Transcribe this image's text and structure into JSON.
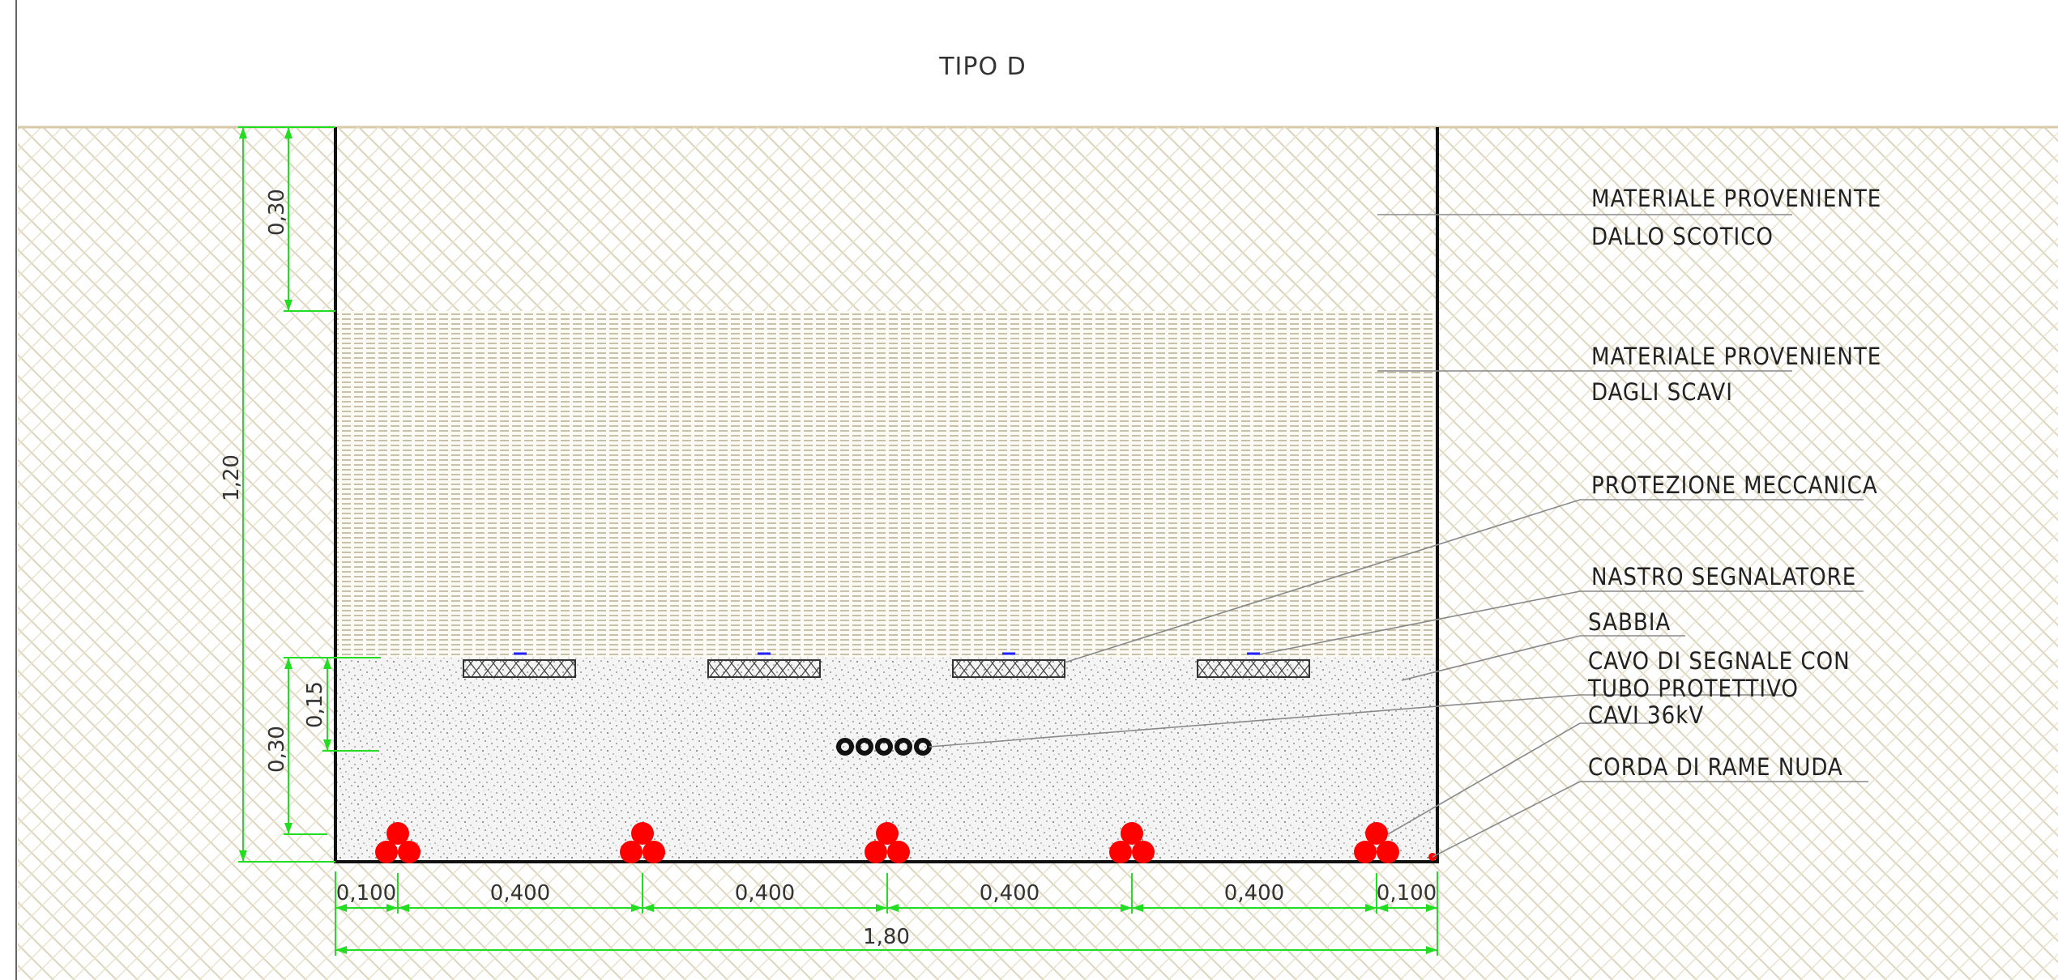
{
  "title": "TIPO D",
  "labels": {
    "scotico": [
      "MATERIALE PROVENIENTE",
      "DALLO SCOTICO"
    ],
    "scavi": [
      "MATERIALE PROVENIENTE",
      "DAGLI SCAVI"
    ],
    "protezione": "PROTEZIONE MECCANICA",
    "nastro": "NASTRO SEGNALATORE",
    "sabbia": "SABBIA",
    "cavo_segnale": [
      "CAVO DI SEGNALE CON",
      "TUBO PROTETTIVO"
    ],
    "cavi": "CAVI 36kV",
    "corda": "CORDA DI RAME NUDA"
  },
  "dimensions": {
    "depth_total": "1,20",
    "depth_top": "0,30",
    "depth_bottom": "0,30",
    "depth_signal": "0,15",
    "width_total": "1,80",
    "spacings": [
      "0,100",
      "0,400",
      "0,400",
      "0,400",
      "0,400",
      "0,100"
    ]
  },
  "colors": {
    "dimension": "#22dd22",
    "cable": "#ff0000",
    "hatch": "#d9d2b6",
    "trench_wall": "#111111",
    "tape": "#2222ff",
    "leader": "#888888"
  },
  "counts": {
    "cable_trefoils": 5,
    "protection_slabs": 4,
    "signal_tubes": 5
  }
}
